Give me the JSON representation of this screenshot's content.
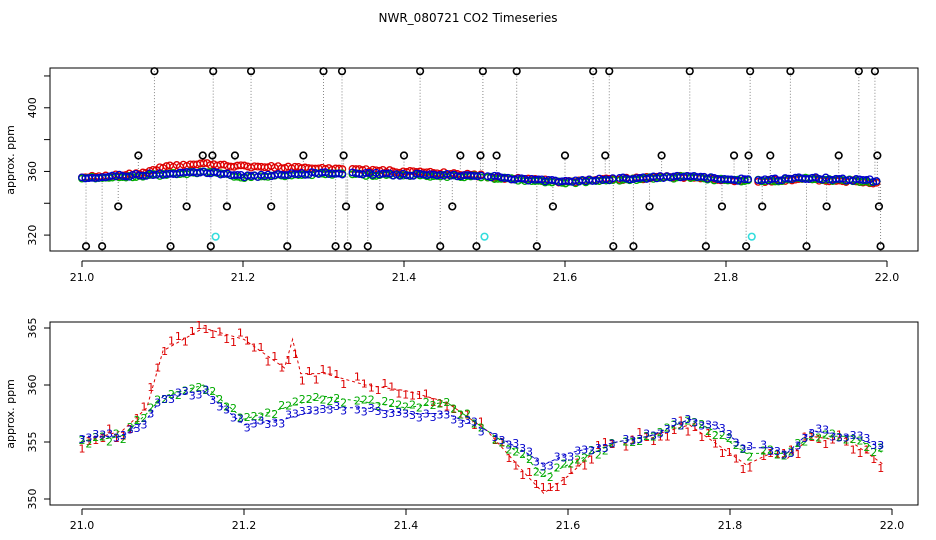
{
  "colors": {
    "series1": "#dd0000",
    "series2": "#00aa00",
    "series3": "#0000cc",
    "outlier": "#000000",
    "flag": "#33dddd",
    "connector": "#888888"
  },
  "chart_data": [
    {
      "type": "scatter",
      "title": "NWR_080721  CO2 Timeseries",
      "xlabel": "",
      "ylabel": "approx. ppm",
      "xlim": [
        21.0,
        22.0
      ],
      "ylim": [
        310,
        425
      ],
      "xticks": [
        "21.0",
        "21.2",
        "21.4",
        "21.6",
        "21.8",
        "22.0"
      ],
      "yticks": [
        "320",
        "360",
        "400"
      ],
      "series": [
        {
          "name": "1",
          "marker": "circle",
          "color": "#dd0000"
        },
        {
          "name": "2",
          "marker": "circle",
          "color": "#00aa00"
        },
        {
          "name": "3",
          "marker": "circle",
          "color": "#0000cc"
        }
      ],
      "outliers": [
        [
          21.005,
          313
        ],
        [
          21.025,
          313
        ],
        [
          21.045,
          338
        ],
        [
          21.07,
          370
        ],
        [
          21.09,
          423
        ],
        [
          21.11,
          313
        ],
        [
          21.13,
          338
        ],
        [
          21.15,
          370
        ],
        [
          21.16,
          313
        ],
        [
          21.162,
          370
        ],
        [
          21.163,
          423
        ],
        [
          21.18,
          338
        ],
        [
          21.19,
          370
        ],
        [
          21.21,
          423
        ],
        [
          21.235,
          338
        ],
        [
          21.255,
          313
        ],
        [
          21.275,
          370
        ],
        [
          21.3,
          423
        ],
        [
          21.315,
          313
        ],
        [
          21.323,
          423
        ],
        [
          21.325,
          370
        ],
        [
          21.328,
          338
        ],
        [
          21.33,
          313
        ],
        [
          21.355,
          313
        ],
        [
          21.37,
          338
        ],
        [
          21.4,
          370
        ],
        [
          21.42,
          423
        ],
        [
          21.445,
          313
        ],
        [
          21.46,
          338
        ],
        [
          21.47,
          370
        ],
        [
          21.49,
          313
        ],
        [
          21.495,
          370
        ],
        [
          21.498,
          423
        ],
        [
          21.515,
          370
        ],
        [
          21.54,
          423
        ],
        [
          21.565,
          313
        ],
        [
          21.585,
          338
        ],
        [
          21.6,
          370
        ],
        [
          21.635,
          423
        ],
        [
          21.65,
          370
        ],
        [
          21.655,
          423
        ],
        [
          21.66,
          313
        ],
        [
          21.685,
          313
        ],
        [
          21.705,
          338
        ],
        [
          21.72,
          370
        ],
        [
          21.755,
          423
        ],
        [
          21.775,
          313
        ],
        [
          21.795,
          338
        ],
        [
          21.81,
          370
        ],
        [
          21.825,
          313
        ],
        [
          21.828,
          370
        ],
        [
          21.83,
          423
        ],
        [
          21.845,
          338
        ],
        [
          21.855,
          370
        ],
        [
          21.88,
          423
        ],
        [
          21.9,
          313
        ],
        [
          21.925,
          338
        ],
        [
          21.94,
          370
        ],
        [
          21.965,
          423
        ],
        [
          21.985,
          423
        ],
        [
          21.988,
          370
        ],
        [
          21.99,
          338
        ],
        [
          21.992,
          313
        ]
      ],
      "flagged": [
        [
          21.166,
          319
        ],
        [
          21.5,
          319
        ],
        [
          21.832,
          319
        ]
      ]
    },
    {
      "type": "line",
      "title": "",
      "xlabel": "",
      "ylabel": "approx. ppm",
      "xlim": [
        21.0,
        22.0
      ],
      "ylim": [
        350,
        365
      ],
      "xticks": [
        "21.0",
        "21.2",
        "21.4",
        "21.6",
        "21.8",
        "22.0"
      ],
      "yticks": [
        "350",
        "355",
        "360",
        "365"
      ],
      "series": [
        {
          "name": "1",
          "marker": "1",
          "color": "#dd0000",
          "points": [
            [
              21.0,
              355
            ],
            [
              21.05,
              356
            ],
            [
              21.08,
              358
            ],
            [
              21.1,
              363
            ],
            [
              21.15,
              365
            ],
            [
              21.2,
              364
            ],
            [
              21.25,
              361.5
            ],
            [
              21.26,
              364
            ],
            [
              21.27,
              361
            ],
            [
              21.3,
              361
            ],
            [
              21.35,
              360
            ],
            [
              21.4,
              359.5
            ],
            [
              21.45,
              358.5
            ],
            [
              21.5,
              356
            ],
            [
              21.55,
              352
            ],
            [
              21.57,
              350.5
            ],
            [
              21.6,
              352
            ],
            [
              21.63,
              354
            ],
            [
              21.66,
              355
            ],
            [
              21.7,
              355.5
            ],
            [
              21.75,
              356.5
            ],
            [
              21.78,
              355
            ],
            [
              21.82,
              353
            ],
            [
              21.85,
              354
            ],
            [
              21.87,
              353.5
            ],
            [
              21.9,
              355.5
            ],
            [
              21.95,
              355
            ],
            [
              21.99,
              353
            ]
          ]
        },
        {
          "name": "2",
          "marker": "2",
          "color": "#00aa00",
          "points": [
            [
              21.0,
              355
            ],
            [
              21.05,
              355.5
            ],
            [
              21.08,
              357.5
            ],
            [
              21.1,
              359
            ],
            [
              21.15,
              360
            ],
            [
              21.2,
              357
            ],
            [
              21.25,
              358
            ],
            [
              21.3,
              359
            ],
            [
              21.35,
              358.5
            ],
            [
              21.4,
              358
            ],
            [
              21.45,
              358.5
            ],
            [
              21.5,
              356
            ],
            [
              21.55,
              353.5
            ],
            [
              21.57,
              352
            ],
            [
              21.6,
              353
            ],
            [
              21.63,
              354
            ],
            [
              21.66,
              355
            ],
            [
              21.7,
              355.5
            ],
            [
              21.75,
              357
            ],
            [
              21.78,
              356
            ],
            [
              21.82,
              354
            ],
            [
              21.85,
              354
            ],
            [
              21.87,
              354
            ],
            [
              21.9,
              355.5
            ],
            [
              21.95,
              355.5
            ],
            [
              21.99,
              354
            ]
          ]
        },
        {
          "name": "3",
          "marker": "3",
          "color": "#0000cc",
          "points": [
            [
              21.0,
              355.5
            ],
            [
              21.05,
              355.5
            ],
            [
              21.08,
              357
            ],
            [
              21.1,
              359
            ],
            [
              21.15,
              359.5
            ],
            [
              21.2,
              356.5
            ],
            [
              21.25,
              357
            ],
            [
              21.3,
              358
            ],
            [
              21.35,
              358
            ],
            [
              21.4,
              357.5
            ],
            [
              21.45,
              357.5
            ],
            [
              21.5,
              356
            ],
            [
              21.55,
              354
            ],
            [
              21.57,
              353
            ],
            [
              21.6,
              354
            ],
            [
              21.63,
              354.5
            ],
            [
              21.66,
              355
            ],
            [
              21.7,
              355.5
            ],
            [
              21.75,
              357
            ],
            [
              21.78,
              356.5
            ],
            [
              21.82,
              354.5
            ],
            [
              21.85,
              354.5
            ],
            [
              21.87,
              354
            ],
            [
              21.9,
              356
            ],
            [
              21.95,
              355.5
            ],
            [
              21.99,
              354.5
            ]
          ]
        }
      ]
    }
  ]
}
